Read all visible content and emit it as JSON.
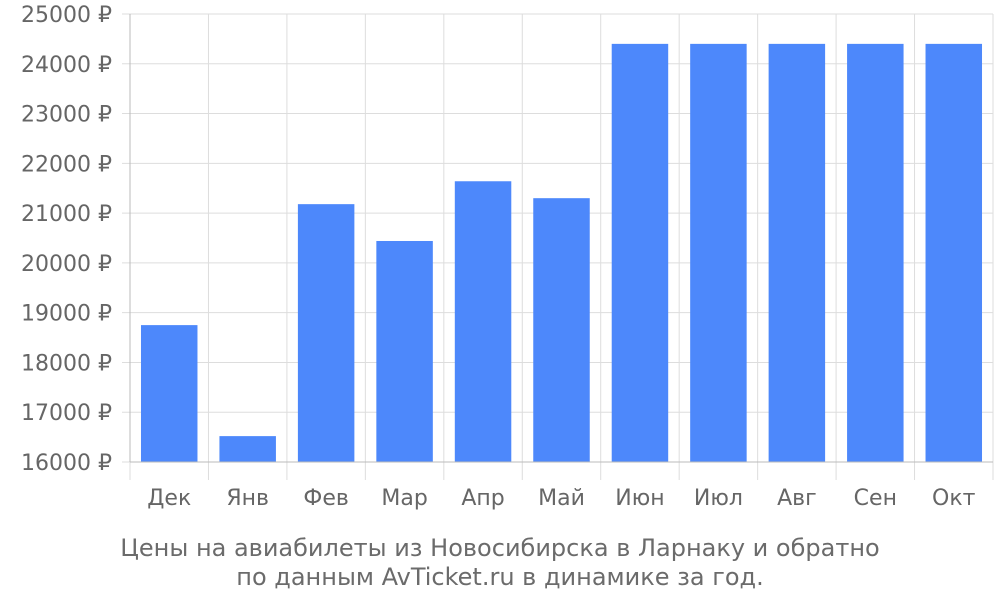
{
  "chart_data": {
    "type": "bar",
    "categories": [
      "Дек",
      "Янв",
      "Фев",
      "Мар",
      "Апр",
      "Май",
      "Июн",
      "Июл",
      "Авг",
      "Сен",
      "Окт"
    ],
    "values": [
      18750,
      16520,
      21180,
      20440,
      21640,
      21300,
      24400,
      24400,
      24400,
      24400,
      24400
    ],
    "ylim": [
      16000,
      25000
    ],
    "yticks": [
      16000,
      17000,
      18000,
      19000,
      20000,
      21000,
      22000,
      23000,
      24000,
      25000
    ],
    "ytick_labels": [
      "16000 ₽",
      "17000 ₽",
      "18000 ₽",
      "19000 ₽",
      "20000 ₽",
      "21000 ₽",
      "22000 ₽",
      "23000 ₽",
      "24000 ₽",
      "25000 ₽"
    ],
    "grid": true,
    "bar_color": "#4d88fb",
    "grid_color": "#dddddd"
  },
  "caption": {
    "line1": "Цены на авиабилеты из Новосибирска в Ларнаку и обратно",
    "line2": "по данным AvTicket.ru в динамике за год."
  }
}
